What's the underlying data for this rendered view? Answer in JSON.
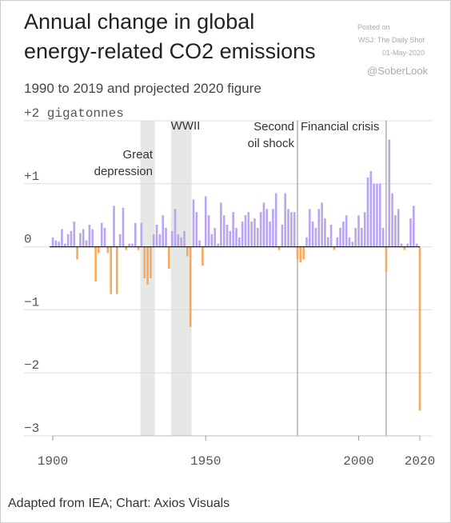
{
  "chart_data": {
    "type": "bar",
    "title": [
      "Annual change in global",
      "energy-related CO2 emissions"
    ],
    "subtitle": "1990 to 2019 and projected 2020 figure",
    "source": "Adapted from IEA; Chart: Axios Visuals",
    "watermark": [
      "Posted on",
      "WSJ: The Daily Shot",
      "01-May-2020"
    ],
    "handle": "@SoberLook",
    "positive_color": "#b9a5f2",
    "negative_color": "#f5aa5c",
    "xlim": [
      1900,
      2020
    ],
    "xticks": [
      1900,
      1950,
      2000,
      2020
    ],
    "ylim": [
      -3,
      2
    ],
    "yticks": [
      {
        "value": -3,
        "label": "−3"
      },
      {
        "value": -2,
        "label": "−2"
      },
      {
        "value": -1,
        "label": "−1"
      },
      0,
      {
        "value": 1,
        "label": "+1"
      },
      {
        "value": 2,
        "label": "+2 gigatonnes"
      }
    ],
    "grid": true,
    "events": [
      {
        "label": [
          "Great",
          "depression"
        ],
        "start": 1929,
        "end": 1933
      },
      {
        "label": [
          "WWII"
        ],
        "start": 1939,
        "end": 1945
      },
      {
        "label": [
          "Second",
          "oil shock"
        ],
        "x": 1980
      },
      {
        "label": [
          "Financial crisis"
        ],
        "x": 2009
      }
    ],
    "x": [
      1900,
      1901,
      1902,
      1903,
      1904,
      1905,
      1906,
      1907,
      1908,
      1909,
      1910,
      1911,
      1912,
      1913,
      1914,
      1915,
      1916,
      1917,
      1918,
      1919,
      1920,
      1921,
      1922,
      1923,
      1924,
      1925,
      1926,
      1927,
      1928,
      1929,
      1930,
      1931,
      1932,
      1933,
      1934,
      1935,
      1936,
      1937,
      1938,
      1939,
      1940,
      1941,
      1942,
      1943,
      1944,
      1945,
      1946,
      1947,
      1948,
      1949,
      1950,
      1951,
      1952,
      1953,
      1954,
      1955,
      1956,
      1957,
      1958,
      1959,
      1960,
      1961,
      1962,
      1963,
      1964,
      1965,
      1966,
      1967,
      1968,
      1969,
      1970,
      1971,
      1972,
      1973,
      1974,
      1975,
      1976,
      1977,
      1978,
      1979,
      1980,
      1981,
      1982,
      1983,
      1984,
      1985,
      1986,
      1987,
      1988,
      1989,
      1990,
      1991,
      1992,
      1993,
      1994,
      1995,
      1996,
      1997,
      1998,
      1999,
      2000,
      2001,
      2002,
      2003,
      2004,
      2005,
      2006,
      2007,
      2008,
      2009,
      2010,
      2011,
      2012,
      2013,
      2014,
      2015,
      2016,
      2017,
      2018,
      2019,
      2020
    ],
    "values": [
      0.15,
      0.1,
      0.08,
      0.28,
      0.05,
      0.2,
      0.25,
      0.4,
      -0.2,
      0.22,
      0.28,
      0.1,
      0.35,
      0.28,
      -0.55,
      -0.1,
      0.38,
      0.3,
      -0.1,
      -0.75,
      0.65,
      -0.75,
      0.2,
      0.62,
      -0.05,
      0.05,
      0.05,
      0.38,
      -0.05,
      0.38,
      -0.5,
      -0.6,
      -0.5,
      0.2,
      0.35,
      0.2,
      0.5,
      0.3,
      -0.35,
      0.25,
      0.6,
      0.2,
      0.15,
      0.25,
      -0.15,
      -1.27,
      0.75,
      0.55,
      0.1,
      -0.3,
      0.8,
      0.5,
      0.2,
      0.3,
      0.05,
      0.7,
      0.5,
      0.35,
      0.25,
      0.55,
      0.3,
      0.15,
      0.4,
      0.5,
      0.55,
      0.4,
      0.45,
      0.3,
      0.55,
      0.7,
      0.6,
      0.4,
      0.6,
      0.85,
      -0.05,
      0.35,
      0.85,
      0.6,
      0.55,
      0.55,
      -0.2,
      -0.25,
      -0.2,
      0.15,
      0.6,
      0.4,
      0.3,
      0.6,
      0.7,
      0.45,
      0.15,
      0.35,
      -0.05,
      0.15,
      0.3,
      0.4,
      0.5,
      0.15,
      0.08,
      0.3,
      0.5,
      0.3,
      0.55,
      1.1,
      1.2,
      1.0,
      1.0,
      1.0,
      0.3,
      -0.4,
      1.7,
      0.85,
      0.5,
      0.6,
      0.05,
      -0.05,
      0.05,
      0.45,
      0.65,
      0.05,
      -2.6
    ]
  }
}
